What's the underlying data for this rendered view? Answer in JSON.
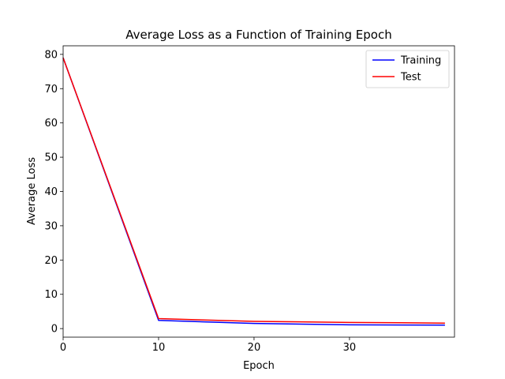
{
  "chart_data": {
    "type": "line",
    "title": "Average Loss as a Function of Training Epoch",
    "xlabel": "Epoch",
    "ylabel": "Average Loss",
    "xlim": [
      0,
      41
    ],
    "ylim": [
      -2.5,
      82.5
    ],
    "xticks": [
      0,
      10,
      20,
      30
    ],
    "yticks": [
      0,
      10,
      20,
      30,
      40,
      50,
      60,
      70,
      80
    ],
    "grid": false,
    "legend_position": "top-right",
    "series": [
      {
        "name": "Training",
        "color": "#0000ff",
        "x": [
          0,
          10,
          20,
          30,
          40
        ],
        "y": [
          79.0,
          2.4,
          1.5,
          1.1,
          1.0
        ]
      },
      {
        "name": "Test",
        "color": "#ff0000",
        "x": [
          0,
          10,
          20,
          30,
          40
        ],
        "y": [
          79.0,
          2.9,
          2.1,
          1.8,
          1.6
        ]
      }
    ]
  }
}
